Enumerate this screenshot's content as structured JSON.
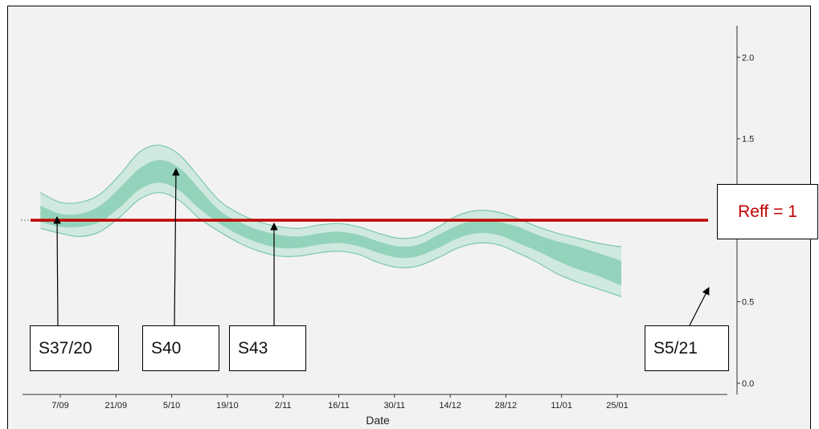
{
  "chart_data": {
    "type": "area",
    "xlabel": "Date",
    "ylabel": "",
    "ylim": [
      0.0,
      2.1
    ],
    "y_axis_side": "right",
    "x_ticks": [
      "7/09",
      "21/09",
      "5/10",
      "19/10",
      "2/11",
      "16/11",
      "30/11",
      "14/12",
      "28/12",
      "11/01",
      "25/01"
    ],
    "y_ticks": [
      "0.0",
      "0.5",
      "1.5",
      "2.0"
    ],
    "reference_line": {
      "y": 1.0,
      "label": "Reff = 1",
      "color": "#c00000"
    },
    "series": {
      "x": [
        -5,
        0,
        5,
        10,
        15,
        20,
        25,
        30,
        35,
        40,
        45,
        50,
        55,
        60,
        65,
        70,
        75,
        80,
        85,
        90,
        95,
        100,
        105,
        110,
        115,
        120,
        125,
        130,
        135,
        140,
        141
      ],
      "median": [
        1.04,
        1.0,
        1.0,
        1.04,
        1.14,
        1.25,
        1.3,
        1.25,
        1.13,
        1.02,
        0.95,
        0.9,
        0.87,
        0.87,
        0.89,
        0.9,
        0.88,
        0.84,
        0.81,
        0.82,
        0.87,
        0.93,
        0.96,
        0.95,
        0.91,
        0.86,
        0.81,
        0.77,
        0.73,
        0.68,
        0.67
      ],
      "inner_upper": [
        1.09,
        1.04,
        1.04,
        1.09,
        1.2,
        1.32,
        1.37,
        1.32,
        1.19,
        1.06,
        0.99,
        0.94,
        0.91,
        0.9,
        0.92,
        0.93,
        0.91,
        0.87,
        0.84,
        0.85,
        0.91,
        0.97,
        1.0,
        0.99,
        0.96,
        0.91,
        0.87,
        0.84,
        0.8,
        0.76,
        0.75
      ],
      "inner_lower": [
        0.99,
        0.96,
        0.96,
        0.99,
        1.08,
        1.19,
        1.23,
        1.18,
        1.07,
        0.98,
        0.91,
        0.86,
        0.83,
        0.83,
        0.85,
        0.86,
        0.84,
        0.8,
        0.77,
        0.78,
        0.83,
        0.89,
        0.92,
        0.91,
        0.86,
        0.81,
        0.75,
        0.7,
        0.66,
        0.61,
        0.6
      ],
      "outer_upper": [
        1.17,
        1.11,
        1.11,
        1.16,
        1.28,
        1.42,
        1.46,
        1.4,
        1.26,
        1.12,
        1.04,
        0.99,
        0.96,
        0.95,
        0.97,
        0.98,
        0.96,
        0.92,
        0.89,
        0.9,
        0.96,
        1.03,
        1.06,
        1.05,
        1.01,
        0.96,
        0.92,
        0.89,
        0.86,
        0.84,
        0.84
      ],
      "outer_lower": [
        0.95,
        0.92,
        0.9,
        0.93,
        1.02,
        1.13,
        1.17,
        1.12,
        1.01,
        0.93,
        0.86,
        0.81,
        0.78,
        0.78,
        0.8,
        0.81,
        0.79,
        0.74,
        0.71,
        0.72,
        0.77,
        0.83,
        0.86,
        0.85,
        0.8,
        0.74,
        0.67,
        0.62,
        0.58,
        0.54,
        0.53
      ]
    },
    "colors": {
      "outer_band": "#cfe9df",
      "inner_band": "#94d3bb",
      "band_edge": "#7cc7a9",
      "background": "#f2f2f2"
    },
    "annotations": [
      {
        "label": "S37/20",
        "points_to_x": -4
      },
      {
        "label": "S40",
        "points_to_x": 25
      },
      {
        "label": "S43",
        "points_to_x": 48
      },
      {
        "label": "S5/21",
        "points_to_x": 140
      }
    ]
  }
}
